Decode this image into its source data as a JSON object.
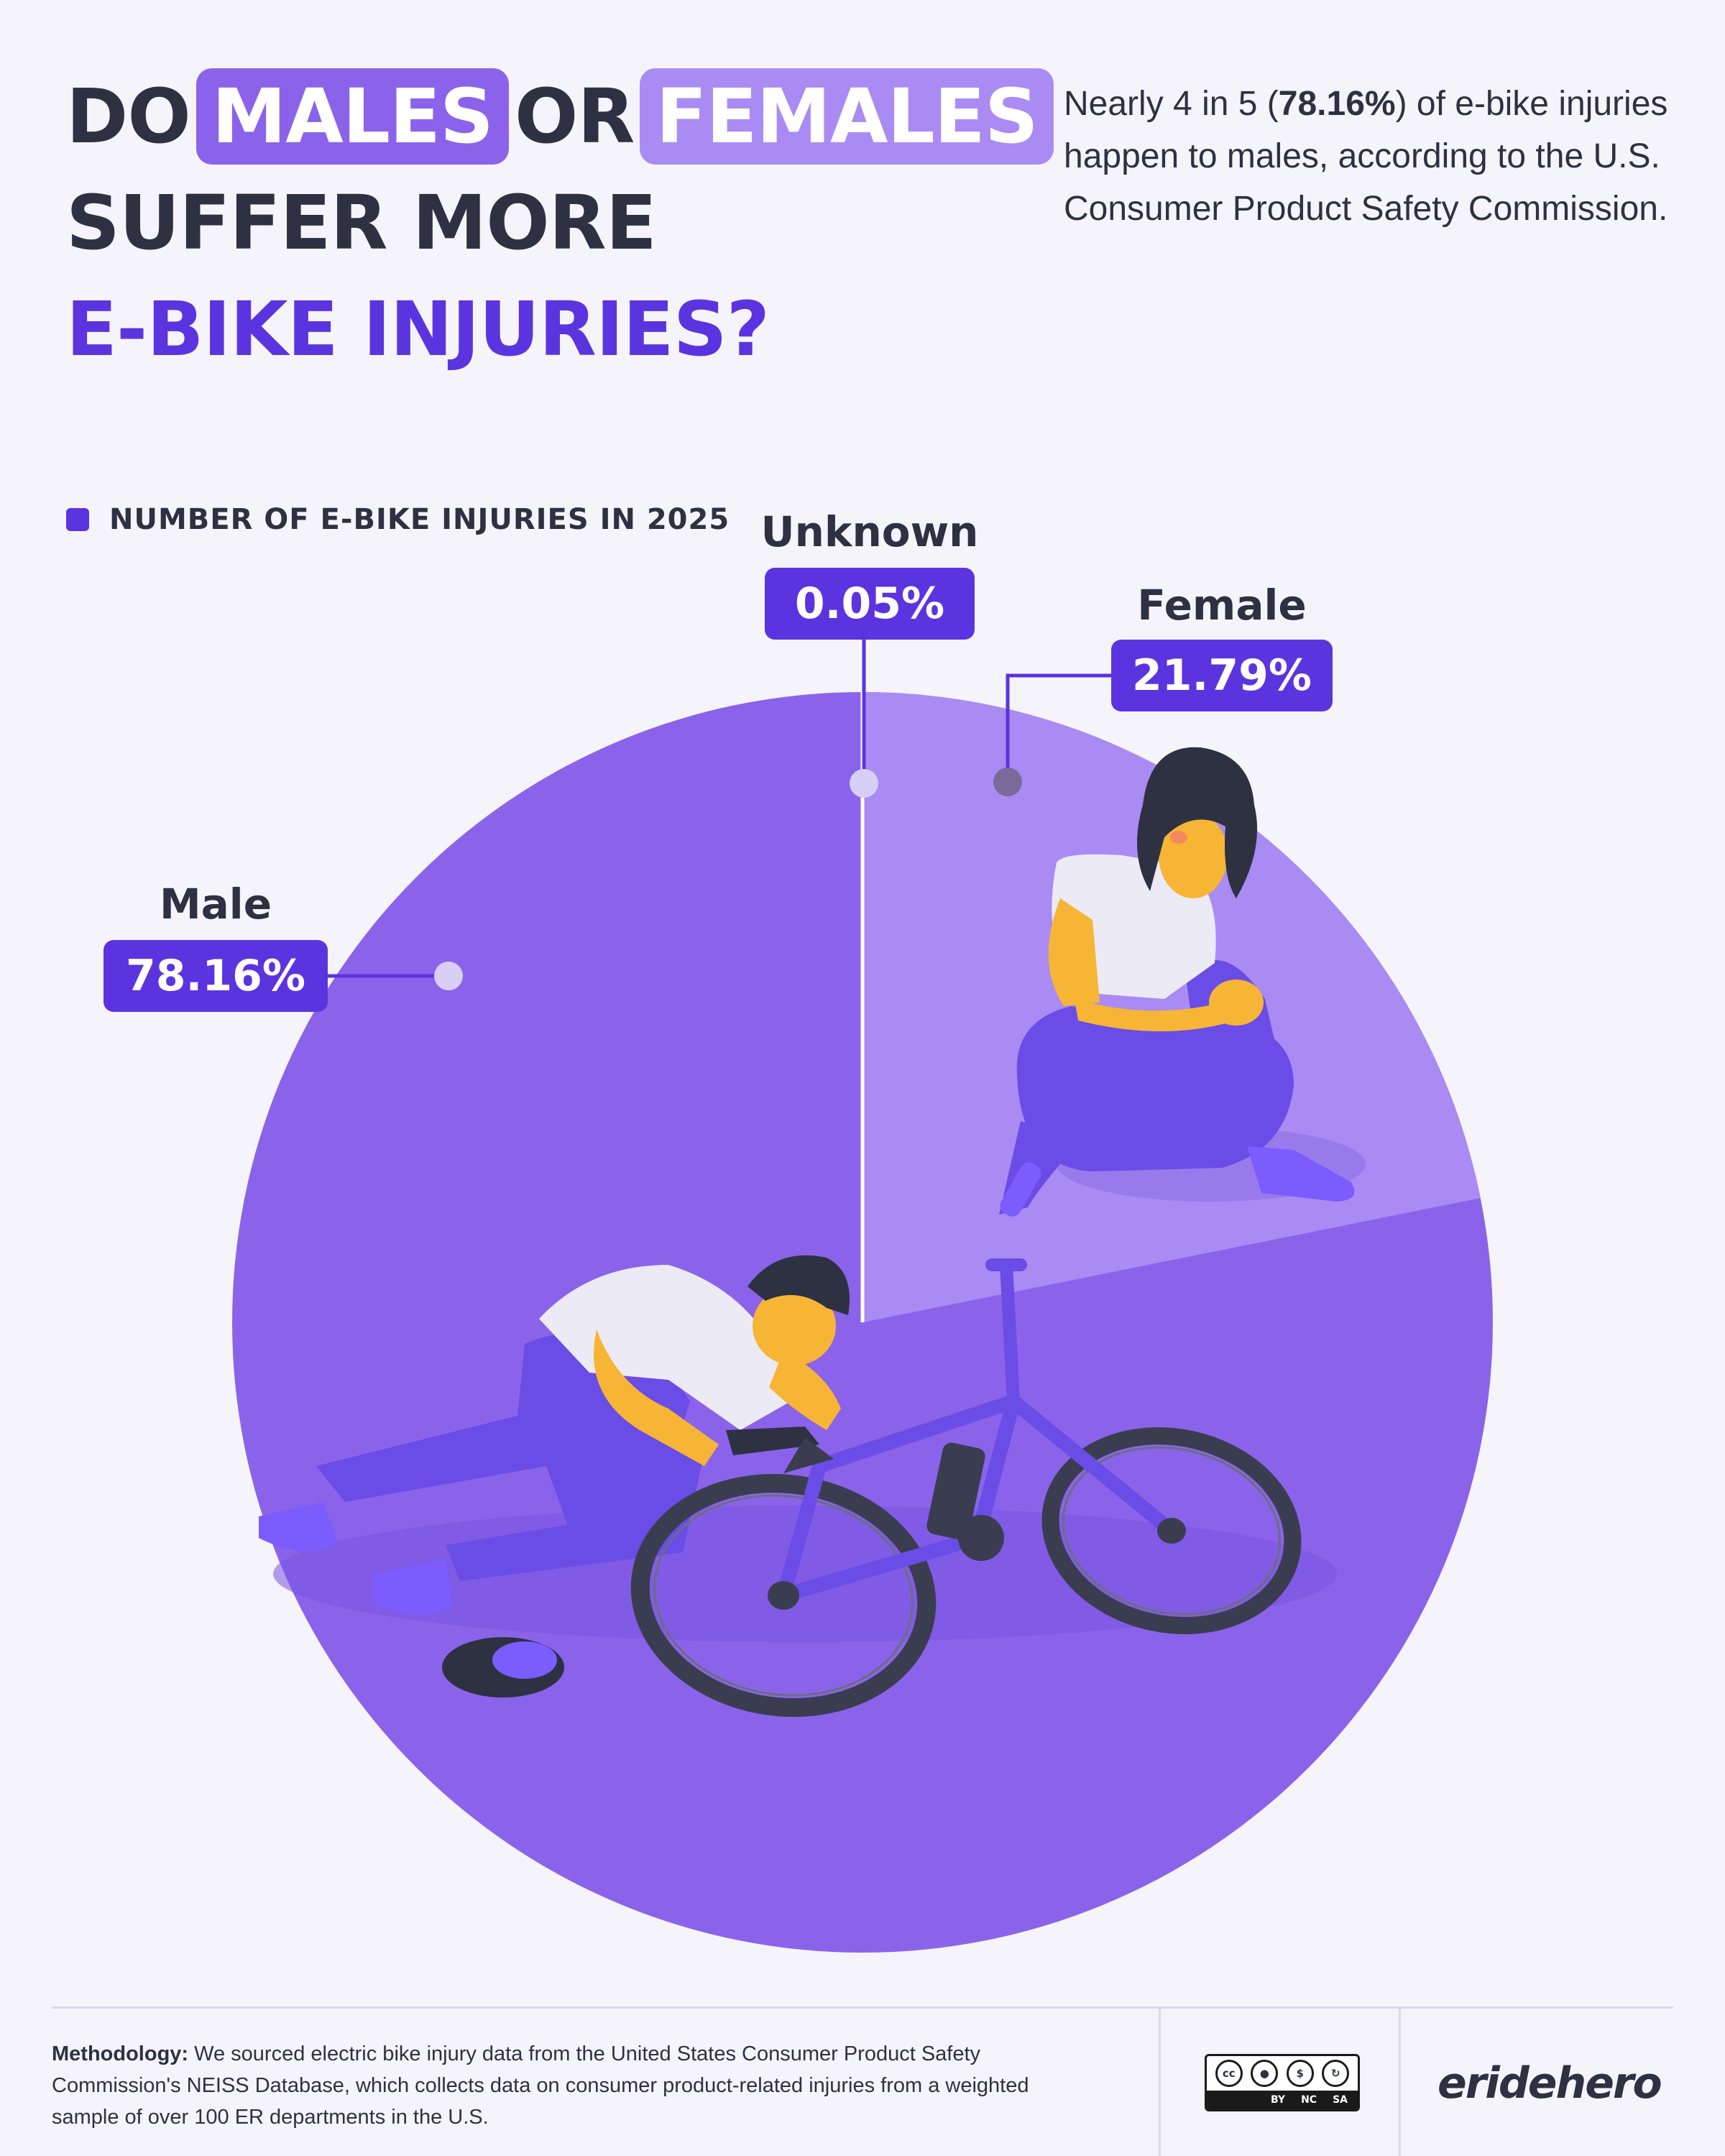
{
  "headline": {
    "word_do": "DO",
    "word_males": "MALES",
    "word_or": "OR",
    "word_females": "FEMALES",
    "line2": "SUFFER MORE",
    "line3": "E-BIKE INJURIES?"
  },
  "intro": {
    "pre": "Nearly 4 in 5 (",
    "highlight": "78.16%",
    "post": ") of e-bike injuries happen to males, according to the U.S. Consumer Product Safety Commission."
  },
  "chart_data": {
    "type": "pie",
    "legend": "NUMBER OF E-BIKE INJURIES IN 2025",
    "legend_placement": "top-left",
    "slices": [
      {
        "label": "Male",
        "value": 78.16,
        "display": "78.16%",
        "color": "#8b63ea"
      },
      {
        "label": "Female",
        "value": 21.79,
        "display": "21.79%",
        "color": "#a98bf3"
      },
      {
        "label": "Unknown",
        "value": 0.05,
        "display": "0.05%",
        "color": "#ffffff"
      }
    ]
  },
  "colors": {
    "background": "#f6f4fb",
    "accent": "#5b34e0",
    "text": "#2d3142",
    "male": "#8b63ea",
    "female": "#a98bf3"
  },
  "footer": {
    "methodology_label": "Methodology:",
    "methodology_text": " We sourced electric bike injury data from the United States Consumer Product Safety Commission's NEISS Database, which collects data on consumer product-related injuries from a weighted sample of over 100 ER departments in the U.S.",
    "license": {
      "cc": "cc",
      "by": "BY",
      "nc": "NC",
      "sa": "SA"
    },
    "brand": "eridehero"
  }
}
